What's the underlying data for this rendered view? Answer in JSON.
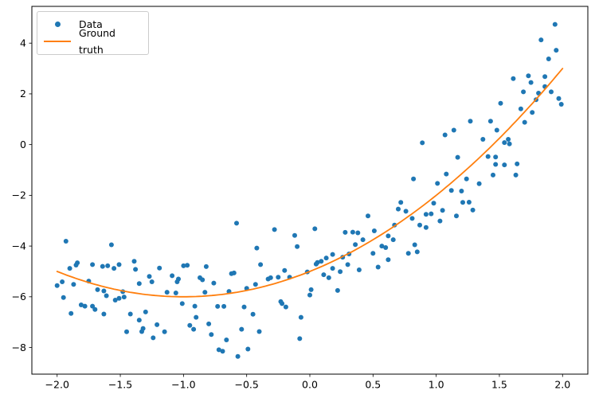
{
  "chart_data": {
    "type": "scatter",
    "title": "",
    "xlabel": "",
    "ylabel": "",
    "grid": false,
    "xlim": [
      -2.2,
      2.2
    ],
    "ylim": [
      -9.05,
      5.45
    ],
    "xtick_values": [
      -2.0,
      -1.5,
      -1.0,
      -0.5,
      0.0,
      0.5,
      1.0,
      1.5,
      2.0
    ],
    "xtick_labels": [
      "−2.0",
      "−1.5",
      "−1.0",
      "−0.5",
      "0.0",
      "0.5",
      "1.0",
      "1.5",
      "2.0"
    ],
    "ytick_values": [
      4,
      2,
      0,
      -2,
      -4,
      -6,
      -8
    ],
    "ytick_labels": [
      "4",
      "2",
      "0",
      "−2",
      "−4",
      "−6",
      "−8"
    ],
    "legend": {
      "position": "upper left",
      "entries": [
        "Data",
        "Ground truth"
      ]
    },
    "series": [
      {
        "name": "Data",
        "type": "scatter",
        "color": "#1f77b4",
        "marker": "circle",
        "marker_radius": 3,
        "points": [
          [
            1.94,
            4.74
          ],
          [
            1.83,
            4.13
          ],
          [
            1.95,
            3.72
          ],
          [
            1.89,
            3.38
          ],
          [
            1.61,
            2.6
          ],
          [
            1.73,
            2.71
          ],
          [
            1.75,
            2.45
          ],
          [
            1.86,
            2.68
          ],
          [
            1.69,
            2.08
          ],
          [
            1.81,
            2.03
          ],
          [
            1.86,
            2.29
          ],
          [
            1.91,
            2.08
          ],
          [
            1.97,
            1.82
          ],
          [
            1.99,
            1.59
          ],
          [
            1.79,
            1.77
          ],
          [
            1.67,
            1.41
          ],
          [
            1.51,
            1.63
          ],
          [
            1.76,
            1.27
          ],
          [
            1.27,
            0.92
          ],
          [
            1.43,
            0.92
          ],
          [
            1.7,
            0.88
          ],
          [
            1.14,
            0.57
          ],
          [
            1.48,
            0.57
          ],
          [
            1.37,
            0.21
          ],
          [
            1.57,
            0.21
          ],
          [
            1.54,
            0.08
          ],
          [
            1.58,
            0.03
          ],
          [
            1.17,
            -0.5
          ],
          [
            1.41,
            -0.47
          ],
          [
            1.47,
            -0.49
          ],
          [
            1.47,
            -0.78
          ],
          [
            1.54,
            -0.8
          ],
          [
            1.64,
            -0.76
          ],
          [
            1.63,
            -1.2
          ],
          [
            1.45,
            -1.2
          ],
          [
            1.24,
            -1.35
          ],
          [
            1.34,
            -1.54
          ],
          [
            1.08,
            -1.16
          ],
          [
            1.12,
            -1.81
          ],
          [
            1.07,
            0.38
          ],
          [
            1.2,
            -1.83
          ],
          [
            1.21,
            -2.28
          ],
          [
            1.26,
            -2.27
          ],
          [
            1.29,
            -2.58
          ],
          [
            1.16,
            -2.81
          ],
          [
            0.89,
            0.07
          ],
          [
            0.82,
            -1.35
          ],
          [
            1.01,
            -1.53
          ],
          [
            0.72,
            -2.28
          ],
          [
            0.7,
            -2.54
          ],
          [
            0.76,
            -2.63
          ],
          [
            0.98,
            -2.31
          ],
          [
            0.96,
            -2.73
          ],
          [
            0.92,
            -2.75
          ],
          [
            1.05,
            -2.59
          ],
          [
            1.03,
            -3.01
          ],
          [
            0.81,
            -2.91
          ],
          [
            0.46,
            -2.81
          ],
          [
            0.04,
            -3.32
          ],
          [
            0.28,
            -3.46
          ],
          [
            0.34,
            -3.45
          ],
          [
            0.38,
            -3.48
          ],
          [
            0.51,
            -3.4
          ],
          [
            0.67,
            -3.17
          ],
          [
            0.87,
            -3.17
          ],
          [
            0.92,
            -3.27
          ],
          [
            0.62,
            -3.6
          ],
          [
            0.42,
            -3.75
          ],
          [
            0.36,
            -3.94
          ],
          [
            0.57,
            -4.0
          ],
          [
            0.6,
            -4.06
          ],
          [
            0.83,
            -3.95
          ],
          [
            0.85,
            -4.23
          ],
          [
            0.66,
            -3.75
          ],
          [
            0.5,
            -4.29
          ],
          [
            0.78,
            -4.29
          ],
          [
            0.31,
            -4.31
          ],
          [
            0.13,
            -4.47
          ],
          [
            0.06,
            -4.65
          ],
          [
            0.09,
            -4.6
          ],
          [
            0.05,
            -4.71
          ],
          [
            0.18,
            -4.33
          ],
          [
            0.26,
            -4.44
          ],
          [
            0.3,
            -4.73
          ],
          [
            0.18,
            -4.88
          ],
          [
            0.24,
            -5.01
          ],
          [
            0.62,
            -4.54
          ],
          [
            0.54,
            -4.83
          ],
          [
            0.39,
            -4.94
          ],
          [
            0.11,
            -5.13
          ],
          [
            0.15,
            -5.25
          ],
          [
            0.01,
            -5.72
          ],
          [
            0.0,
            -5.93
          ],
          [
            0.22,
            -5.75
          ],
          [
            -0.58,
            -3.1
          ],
          [
            -0.28,
            -3.35
          ],
          [
            -0.12,
            -3.58
          ],
          [
            -0.1,
            -4.02
          ],
          [
            -0.42,
            -4.08
          ],
          [
            -0.39,
            -4.73
          ],
          [
            -1.0,
            -4.78
          ],
          [
            -0.97,
            -4.76
          ],
          [
            -0.82,
            -4.81
          ],
          [
            -1.09,
            -5.17
          ],
          [
            -1.04,
            -5.3
          ],
          [
            -1.05,
            -5.41
          ],
          [
            -0.87,
            -5.25
          ],
          [
            -0.85,
            -5.33
          ],
          [
            -0.62,
            -5.09
          ],
          [
            -0.6,
            -5.06
          ],
          [
            -0.76,
            -5.46
          ],
          [
            -1.06,
            -5.85
          ],
          [
            -0.83,
            -5.82
          ],
          [
            -0.64,
            -5.79
          ],
          [
            -0.5,
            -5.67
          ],
          [
            -0.43,
            -5.51
          ],
          [
            -0.33,
            -5.3
          ],
          [
            -0.31,
            -5.25
          ],
          [
            -0.25,
            -5.23
          ],
          [
            -0.2,
            -4.96
          ],
          [
            -0.02,
            -5.02
          ],
          [
            -0.16,
            -5.23
          ],
          [
            -1.01,
            -6.27
          ],
          [
            -0.91,
            -6.37
          ],
          [
            -0.73,
            -6.38
          ],
          [
            -0.68,
            -6.38
          ],
          [
            -0.52,
            -6.4
          ],
          [
            -0.23,
            -6.19
          ],
          [
            -0.22,
            -6.27
          ],
          [
            -0.19,
            -6.4
          ],
          [
            -0.07,
            -6.81
          ],
          [
            -0.45,
            -6.69
          ],
          [
            -0.9,
            -6.81
          ],
          [
            -0.95,
            -7.13
          ],
          [
            -0.92,
            -7.28
          ],
          [
            -0.8,
            -7.07
          ],
          [
            -0.78,
            -7.49
          ],
          [
            -0.54,
            -7.28
          ],
          [
            -0.4,
            -7.37
          ],
          [
            -0.66,
            -7.7
          ],
          [
            -0.72,
            -8.09
          ],
          [
            -0.69,
            -8.15
          ],
          [
            -0.57,
            -8.35
          ],
          [
            -0.49,
            -8.06
          ],
          [
            -0.08,
            -7.65
          ],
          [
            -1.93,
            -3.81
          ],
          [
            -1.57,
            -3.95
          ],
          [
            -1.84,
            -4.66
          ],
          [
            -1.9,
            -4.88
          ],
          [
            -1.85,
            -4.75
          ],
          [
            -1.72,
            -4.73
          ],
          [
            -1.64,
            -4.8
          ],
          [
            -1.6,
            -4.78
          ],
          [
            -1.55,
            -4.88
          ],
          [
            -1.51,
            -4.73
          ],
          [
            -1.39,
            -4.6
          ],
          [
            -1.38,
            -4.92
          ],
          [
            -1.19,
            -4.87
          ],
          [
            -1.27,
            -5.2
          ],
          [
            -1.25,
            -5.41
          ],
          [
            -1.35,
            -5.48
          ],
          [
            -2.0,
            -5.56
          ],
          [
            -1.96,
            -5.41
          ],
          [
            -1.87,
            -5.51
          ],
          [
            -1.75,
            -5.38
          ],
          [
            -1.68,
            -5.72
          ],
          [
            -1.63,
            -5.77
          ],
          [
            -1.95,
            -6.03
          ],
          [
            -1.48,
            -5.8
          ],
          [
            -1.51,
            -6.06
          ],
          [
            -1.47,
            -6.01
          ],
          [
            -1.54,
            -6.13
          ],
          [
            -1.61,
            -5.96
          ],
          [
            -1.13,
            -5.82
          ],
          [
            -1.81,
            -6.32
          ],
          [
            -1.78,
            -6.37
          ],
          [
            -1.72,
            -6.37
          ],
          [
            -1.7,
            -6.5
          ],
          [
            -1.89,
            -6.66
          ],
          [
            -1.63,
            -6.68
          ],
          [
            -1.42,
            -6.68
          ],
          [
            -1.3,
            -6.6
          ],
          [
            -1.35,
            -6.92
          ],
          [
            -1.32,
            -7.25
          ],
          [
            -1.21,
            -7.1
          ],
          [
            -1.33,
            -7.37
          ],
          [
            -1.15,
            -7.38
          ],
          [
            -1.24,
            -7.62
          ],
          [
            -1.45,
            -7.38
          ]
        ]
      },
      {
        "name": "Ground truth",
        "type": "line",
        "color": "#ff7f0e",
        "line_width": 1.8,
        "formula": "y = x^2 + 2x - 5",
        "poly_coeffs": [
          -5,
          2,
          1
        ],
        "x_range": [
          -2,
          2
        ]
      }
    ]
  }
}
